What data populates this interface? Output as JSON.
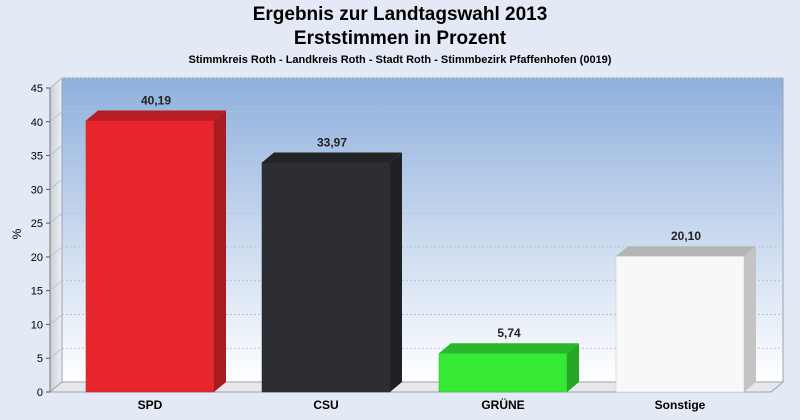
{
  "header": {
    "title_line1": "Ergebnis zur Landtagswahl 2013",
    "title_line2": "Erststimmen in Prozent",
    "subtitle": "Stimmkreis Roth - Landkreis Roth - Stadt Roth - Stimmbezirk Pfaffenhofen (0019)"
  },
  "chart_data": {
    "type": "bar",
    "title": "Ergebnis zur Landtagswahl 2013 Erststimmen in Prozent",
    "subtitle": "Stimmkreis Roth - Landkreis Roth - Stadt Roth - Stimmbezirk Pfaffenhofen (0019)",
    "categories": [
      "SPD",
      "CSU",
      "GRÜNE",
      "Sonstige"
    ],
    "values": [
      40.19,
      33.97,
      5.74,
      20.1
    ],
    "value_labels": [
      "40,19",
      "33,97",
      "5,74",
      "20,10"
    ],
    "colors": [
      "#e8262e",
      "#2c2e33",
      "#35e935",
      "#f8f8f8"
    ],
    "ylabel": "%",
    "xlabel": "",
    "ylim": [
      0,
      45
    ],
    "yticks": [
      0,
      5,
      10,
      15,
      20,
      25,
      30,
      35,
      40,
      45
    ],
    "grid": true,
    "legend": "none"
  }
}
